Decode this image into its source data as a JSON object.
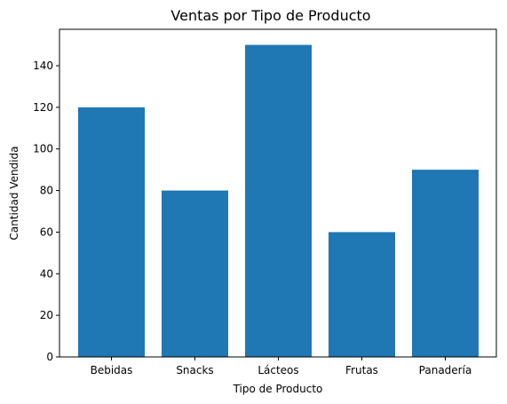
{
  "chart_data": {
    "type": "bar",
    "title": "Ventas por Tipo de Producto",
    "xlabel": "Tipo de Producto",
    "ylabel": "Cantidad Vendida",
    "categories": [
      "Bebidas",
      "Snacks",
      "Lácteos",
      "Frutas",
      "Panadería"
    ],
    "values": [
      120,
      80,
      150,
      60,
      90
    ],
    "ylim": [
      0,
      157.5
    ],
    "yticks": [
      0,
      20,
      40,
      60,
      80,
      100,
      120,
      140
    ],
    "bar_color": "#1f77b4",
    "grid": false,
    "legend": false
  }
}
